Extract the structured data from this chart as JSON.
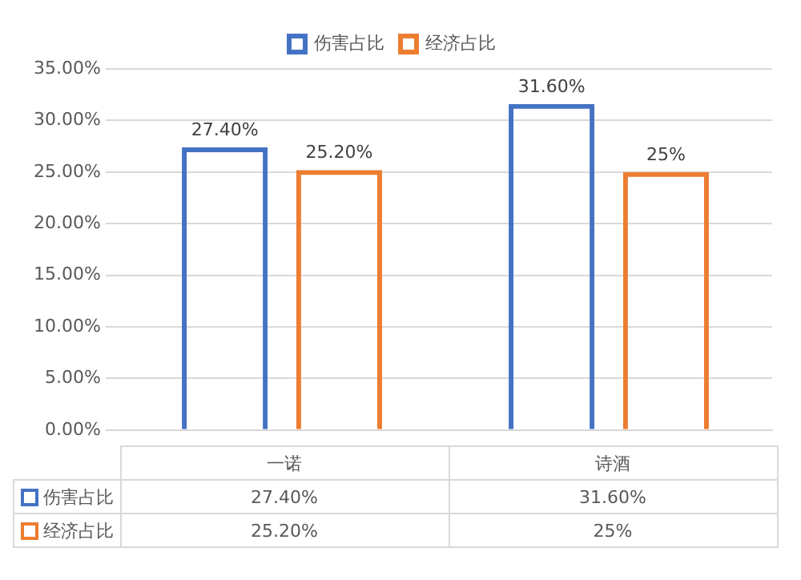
{
  "chart_data": {
    "type": "bar",
    "categories": [
      "一诺",
      "诗酒"
    ],
    "series": [
      {
        "name": "伤害占比",
        "color": "#4472c4",
        "values": [
          27.4,
          31.6
        ],
        "value_labels": [
          "27.40%",
          "31.60%"
        ]
      },
      {
        "name": "经济占比",
        "color": "#ed7d31",
        "values": [
          25.2,
          25
        ],
        "value_labels": [
          "25.20%",
          "25%"
        ]
      }
    ],
    "ylim": [
      0,
      35
    ],
    "yticks": [
      {
        "value": 0,
        "label": "0.00%"
      },
      {
        "value": 5,
        "label": "5.00%"
      },
      {
        "value": 10,
        "label": "10.00%"
      },
      {
        "value": 15,
        "label": "15.00%"
      },
      {
        "value": 20,
        "label": "20.00%"
      },
      {
        "value": 25,
        "label": "25.00%"
      },
      {
        "value": 30,
        "label": "30.00%"
      },
      {
        "value": 35,
        "label": "35.00%"
      }
    ],
    "grid": "y",
    "legend": "top"
  }
}
